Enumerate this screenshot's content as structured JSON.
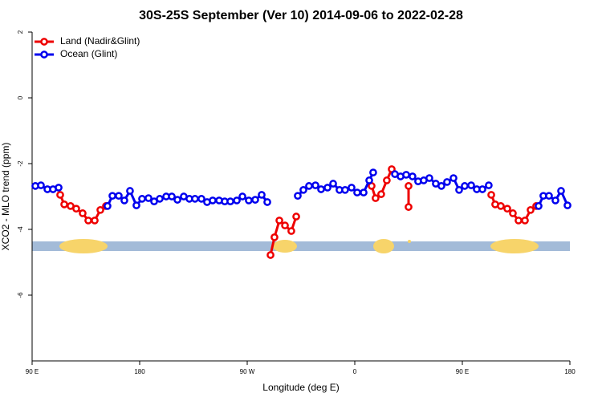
{
  "chart_data": {
    "type": "line",
    "title": "30S-25S September (Ver 10)   2014-09-06 to 2022-02-28",
    "x_label": "Longitude (deg E)",
    "y_label": "XCO2 - MLO trend (ppm)",
    "xlim": [
      90,
      540
    ],
    "xticks": [
      {
        "value": 90,
        "label": "90 E"
      },
      {
        "value": 180,
        "label": "180"
      },
      {
        "value": 270,
        "label": "90 W"
      },
      {
        "value": 360,
        "label": "0"
      },
      {
        "value": 450,
        "label": "90 E"
      },
      {
        "value": 540,
        "label": "180"
      }
    ],
    "ylim": [
      -8,
      2
    ],
    "yticks": [
      2,
      0,
      -2,
      -4,
      -6
    ],
    "legend": "top-left",
    "series": [
      {
        "name": "Land (Nadir&Glint)",
        "color": "#ee0000",
        "x": [
          113.5,
          116.9,
          122.2,
          126.9,
          132.3,
          137,
          142.4,
          147.1,
          151.8,
          null,
          289.5,
          292.8,
          296.9,
          301.6,
          306.9,
          311,
          null,
          374.1,
          377.4,
          382.1,
          386.8,
          390.9,
          null,
          405,
          405,
          null,
          474.2,
          477.5,
          482.2,
          487.6,
          492.3,
          497,
          502.4,
          507.1,
          511.8
        ],
        "values": [
          -2.95,
          -3.24,
          -3.29,
          -3.37,
          -3.51,
          -3.73,
          -3.73,
          -3.41,
          -3.29,
          null,
          -4.78,
          -4.24,
          -3.73,
          -3.88,
          -4.05,
          -3.61,
          null,
          -2.68,
          -3.05,
          -2.93,
          -2.51,
          -2.17,
          null,
          -2.68,
          -3.32,
          null,
          -2.95,
          -3.24,
          -3.29,
          -3.37,
          -3.51,
          -3.73,
          -3.73,
          -3.41,
          -3.29
        ]
      },
      {
        "name": "Ocean (Glint)",
        "color": "#0000ee",
        "x": [
          92.7,
          97.4,
          102.8,
          107.5,
          112.2,
          null,
          153.1,
          157.2,
          162.5,
          167.2,
          171.9,
          177.3,
          182,
          187.4,
          192.1,
          196.8,
          202.2,
          206.9,
          211.6,
          216.9,
          221.6,
          226.3,
          231.7,
          236.4,
          241.1,
          246.5,
          251.2,
          255.9,
          261.3,
          266,
          271.3,
          276.7,
          282.1,
          286.8,
          null,
          312.3,
          317,
          321.7,
          327.1,
          331.8,
          337.2,
          341.9,
          347.2,
          351.9,
          357.3,
          362,
          367.4,
          372.1,
          375.4,
          null,
          393.6,
          398.3,
          403,
          408.3,
          413,
          417.7,
          422.4,
          427.8,
          432.5,
          437.2,
          442.6,
          447.3,
          452,
          457.4,
          462.1,
          466.8,
          472.1,
          null,
          513.8,
          517.8,
          522.5,
          527.9,
          532.6,
          538
        ],
        "values": [
          -2.68,
          -2.66,
          -2.78,
          -2.78,
          -2.73,
          null,
          -3.29,
          -2.98,
          -2.98,
          -3.12,
          -2.83,
          -3.27,
          -3.07,
          -3.05,
          -3.15,
          -3.07,
          -3.0,
          -3.0,
          -3.1,
          -3.0,
          -3.07,
          -3.07,
          -3.07,
          -3.17,
          -3.12,
          -3.12,
          -3.15,
          -3.15,
          -3.12,
          -3.0,
          -3.12,
          -3.1,
          -2.95,
          -3.17,
          null,
          -2.98,
          -2.8,
          -2.68,
          -2.66,
          -2.78,
          -2.73,
          -2.61,
          -2.8,
          -2.8,
          -2.73,
          -2.88,
          -2.88,
          -2.51,
          -2.27,
          null,
          -2.32,
          -2.39,
          -2.34,
          -2.39,
          -2.54,
          -2.51,
          -2.44,
          -2.61,
          -2.68,
          -2.56,
          -2.44,
          -2.8,
          -2.68,
          -2.66,
          -2.78,
          -2.78,
          -2.66,
          null,
          -3.29,
          -2.98,
          -2.98,
          -3.12,
          -2.83,
          -3.27
        ]
      }
    ]
  }
}
